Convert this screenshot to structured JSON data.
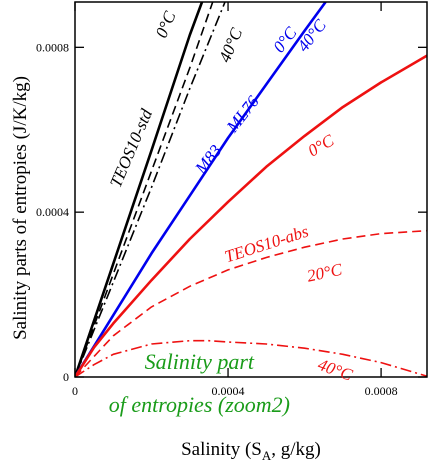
{
  "chart_data": {
    "type": "line",
    "title": "",
    "xlabel": "Salinity (S_A, g/kg)",
    "xlabel_parts": {
      "pre": "Salinity (S",
      "sub": "A",
      "post": ", g/kg)"
    },
    "ylabel": "Salinity parts of entropies (J/K/kg)",
    "xlim": [
      0,
      0.00092
    ],
    "ylim": [
      0,
      0.00091
    ],
    "xticks": [
      0,
      0.0004,
      0.0008
    ],
    "xtick_labels": [
      "0",
      "0.0004",
      "0.0008"
    ],
    "yticks": [
      0,
      0.0004,
      0.0008
    ],
    "ytick_labels": [
      "0",
      "0.0004",
      "0.0008"
    ],
    "grid": false,
    "colors": {
      "black": "#000000",
      "blue": "#0000ee",
      "red": "#ee1111",
      "green": "#1a9c1a"
    },
    "series": [
      {
        "id": "teos10-std-0c",
        "color": "#000000",
        "dash": "solid",
        "width": 2.6,
        "x": [
          0,
          0.0001,
          0.0002,
          0.0003,
          0.000332
        ],
        "y": [
          0,
          0.000275,
          0.00055,
          0.00083,
          0.00091
        ]
      },
      {
        "id": "black-dashed",
        "color": "#000000",
        "dash": "dashed",
        "width": 1.6,
        "x": [
          0,
          0.0001,
          0.0002,
          0.0003,
          0.00036
        ],
        "y": [
          0,
          0.00025,
          0.0005,
          0.00075,
          0.00091
        ]
      },
      {
        "id": "black-dashdot-40c",
        "color": "#000000",
        "dash": "dashdot",
        "width": 1.6,
        "x": [
          0,
          0.0001,
          0.0002,
          0.0003,
          0.000392
        ],
        "y": [
          0,
          0.00023,
          0.00046,
          0.0007,
          0.00091
        ]
      },
      {
        "id": "blue-ml76-m83",
        "color": "#0000ee",
        "dash": "solid",
        "width": 2.6,
        "x": [
          0,
          0.0001,
          0.0002,
          0.0003,
          0.0004,
          0.0005,
          0.0006,
          0.000655
        ],
        "y": [
          0,
          0.00015,
          0.0003,
          0.00044,
          0.00058,
          0.00071,
          0.00084,
          0.00091
        ]
      },
      {
        "id": "red-0c",
        "color": "#ee1111",
        "dash": "solid",
        "width": 2.6,
        "x": [
          0,
          5e-05,
          0.0001,
          0.0002,
          0.0003,
          0.0004,
          0.0005,
          0.0006,
          0.0007,
          0.0008,
          0.00092
        ],
        "y": [
          0,
          7.2e-05,
          0.00013,
          0.000235,
          0.000335,
          0.000425,
          0.00051,
          0.000585,
          0.000655,
          0.000715,
          0.00078
        ]
      },
      {
        "id": "red-20c",
        "color": "#ee1111",
        "dash": "dashed",
        "width": 1.6,
        "x": [
          0,
          5e-05,
          0.0001,
          0.0002,
          0.0003,
          0.0004,
          0.0005,
          0.0006,
          0.0007,
          0.0008,
          0.00092
        ],
        "y": [
          0,
          5e-05,
          0.0001,
          0.00017,
          0.00022,
          0.00026,
          0.00029,
          0.000315,
          0.000335,
          0.000348,
          0.000355
        ]
      },
      {
        "id": "red-40c",
        "color": "#ee1111",
        "dash": "dashdot",
        "width": 1.6,
        "x": [
          0,
          5e-05,
          0.0001,
          0.0002,
          0.0003,
          0.00035,
          0.0004,
          0.0005,
          0.0006,
          0.0007,
          0.0008,
          0.00092
        ],
        "y": [
          0,
          3e-05,
          5.5e-05,
          8e-05,
          8.8e-05,
          8.8e-05,
          8.5e-05,
          8e-05,
          7e-05,
          5.5e-05,
          3.5e-05,
          2e-06
        ]
      }
    ],
    "annotations": [
      {
        "id": "label-teos10-std",
        "text": "TEOS10-std",
        "color": "#000000",
        "size": 17,
        "x": 0.00016,
        "y": 0.00055,
        "angle": -67
      },
      {
        "id": "label-black-0c",
        "text": "0°C",
        "color": "#000000",
        "size": 17,
        "x": 0.00025,
        "y": 0.00085,
        "angle": -67
      },
      {
        "id": "label-black-40c",
        "text": "40°C",
        "color": "#000000",
        "size": 17,
        "x": 0.00042,
        "y": 0.0008,
        "angle": -67
      },
      {
        "id": "label-m83",
        "text": "M83",
        "color": "#0000ee",
        "size": 17,
        "x": 0.00036,
        "y": 0.00052,
        "angle": -52
      },
      {
        "id": "label-ml76",
        "text": "ML76",
        "color": "#0000ee",
        "size": 17,
        "x": 0.00045,
        "y": 0.00063,
        "angle": -52
      },
      {
        "id": "label-blue-0c",
        "text": "0°C",
        "color": "#0000ee",
        "size": 17,
        "x": 0.00056,
        "y": 0.00081,
        "angle": -52
      },
      {
        "id": "label-blue-40c",
        "text": "40°C",
        "color": "#0000ee",
        "size": 17,
        "x": 0.00063,
        "y": 0.00082,
        "angle": -52
      },
      {
        "id": "label-red-0c",
        "text": "0°C",
        "color": "#ee1111",
        "size": 17,
        "x": 0.00065,
        "y": 0.00055,
        "angle": -30
      },
      {
        "id": "label-teos10-abs",
        "text": "TEOS10-abs",
        "color": "#ee1111",
        "size": 17,
        "x": 0.000505,
        "y": 0.00031,
        "angle": -18
      },
      {
        "id": "label-red-20c",
        "text": "20°C",
        "color": "#ee1111",
        "size": 17,
        "x": 0.000655,
        "y": 0.00024,
        "angle": -12
      },
      {
        "id": "label-red-40c",
        "text": "40°C",
        "color": "#ee1111",
        "size": 17,
        "x": 0.000675,
        "y": 5e-06,
        "angle": 20
      },
      {
        "id": "label-zoom-line1",
        "text": "Salinity part",
        "color": "#1a9c1a",
        "size": 22,
        "x": 0.000325,
        "y": 2e-05,
        "angle": 0
      },
      {
        "id": "label-zoom-line2",
        "text": "of entropies (zoom2)",
        "color": "#1a9c1a",
        "size": 22,
        "x": 0.000325,
        "y": -8.5e-05,
        "angle": 0
      }
    ]
  }
}
